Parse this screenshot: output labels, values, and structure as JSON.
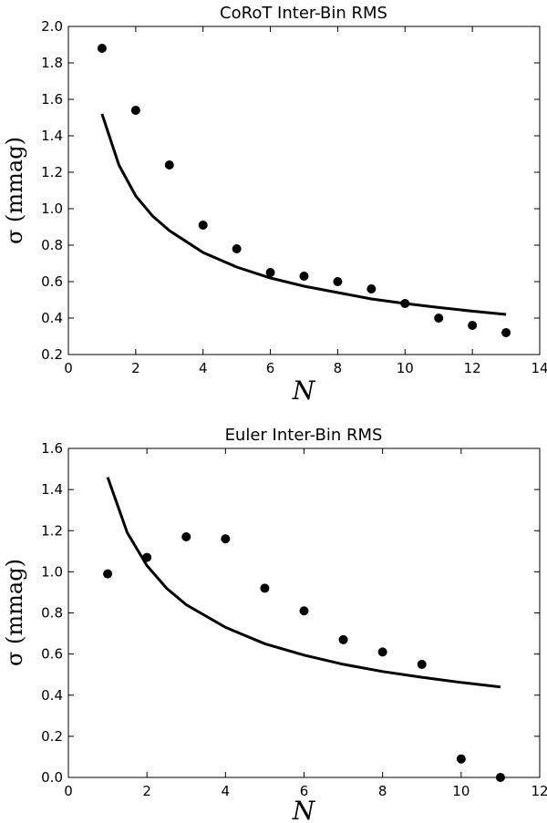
{
  "chart_data": [
    {
      "type": "scatter",
      "title": "CoRoT Inter-Bin RMS",
      "xlabel": "N",
      "ylabel": "σ (mmag)",
      "xlim": [
        0,
        14
      ],
      "ylim": [
        0.2,
        2.0
      ],
      "xticks": [
        "0",
        "2",
        "4",
        "6",
        "8",
        "10",
        "12",
        "14"
      ],
      "yticks": [
        "0.2",
        "0.4",
        "0.6",
        "0.8",
        "1.0",
        "1.2",
        "1.4",
        "1.6",
        "1.8",
        "2.0"
      ],
      "grid": false,
      "series": [
        {
          "kind": "points",
          "x": [
            1,
            2,
            3,
            4,
            5,
            6,
            7,
            8,
            9,
            10,
            11,
            12,
            13
          ],
          "y": [
            1.88,
            1.54,
            1.24,
            0.91,
            0.78,
            0.65,
            0.63,
            0.6,
            0.56,
            0.48,
            0.4,
            0.36,
            0.32
          ]
        },
        {
          "kind": "line",
          "x": [
            1,
            1.5,
            2,
            2.5,
            3,
            4,
            5,
            6,
            7,
            8,
            9,
            10,
            11,
            12,
            13
          ],
          "y": [
            1.52,
            1.24,
            1.07,
            0.96,
            0.88,
            0.76,
            0.68,
            0.62,
            0.575,
            0.54,
            0.505,
            0.48,
            0.458,
            0.438,
            0.42
          ]
        }
      ]
    },
    {
      "type": "scatter",
      "title": "Euler Inter-Bin RMS",
      "xlabel": "N",
      "ylabel": "σ (mmag)",
      "xlim": [
        0,
        12
      ],
      "ylim": [
        0.0,
        1.6
      ],
      "xticks": [
        "0",
        "2",
        "4",
        "6",
        "8",
        "10",
        "12"
      ],
      "yticks": [
        "0.0",
        "0.2",
        "0.4",
        "0.6",
        "0.8",
        "1.0",
        "1.2",
        "1.4",
        "1.6"
      ],
      "grid": false,
      "series": [
        {
          "kind": "points",
          "x": [
            1,
            2,
            3,
            4,
            5,
            6,
            7,
            8,
            9,
            10,
            11
          ],
          "y": [
            0.99,
            1.07,
            1.17,
            1.16,
            0.92,
            0.81,
            0.67,
            0.61,
            0.55,
            0.09,
            0.0
          ]
        },
        {
          "kind": "line",
          "x": [
            1,
            1.5,
            2,
            2.5,
            3,
            4,
            5,
            6,
            7,
            8,
            9,
            10,
            11
          ],
          "y": [
            1.46,
            1.19,
            1.03,
            0.92,
            0.84,
            0.73,
            0.65,
            0.595,
            0.55,
            0.515,
            0.487,
            0.462,
            0.44
          ]
        }
      ]
    }
  ]
}
